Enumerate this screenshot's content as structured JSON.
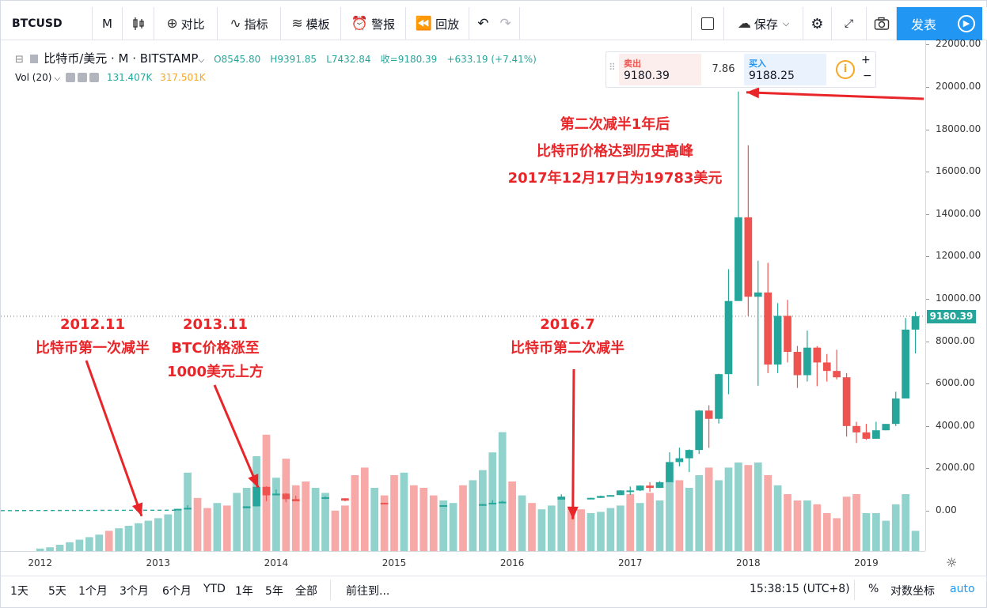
{
  "toolbar": {
    "symbol": "BTCUSD",
    "interval": "M",
    "compare": "对比",
    "indicators": "指标",
    "templates": "模板",
    "alert": "警报",
    "replay": "回放",
    "save": "保存",
    "publish": "发表"
  },
  "legend": {
    "title": "比特币/美元 · M · BITSTAMP",
    "open": "O8545.80",
    "high": "H9391.85",
    "low": "L7432.84",
    "close": "收=9180.39",
    "change": "+633.19 (+7.41%)"
  },
  "volume": {
    "label": "Vol (20)",
    "v1": "131.407K",
    "v2": "317.501K"
  },
  "trade": {
    "sell_label": "卖出",
    "sell_price": "9180.39",
    "spread": "7.86",
    "buy_label": "买入",
    "buy_price": "9188.25"
  },
  "last_price": "9180.39",
  "annotations": {
    "a1_line1": "2012.11",
    "a1_line2": "比特币第一次减半",
    "a2_line1": "2013.11",
    "a2_line2": "BTC价格涨至",
    "a2_line3": "1000美元上方",
    "a3_line1": "2016.7",
    "a3_line2": "比特币第二次减半",
    "a4_line1": "第二次减半1年后",
    "a4_line2": "比特币价格达到历史高峰",
    "a4_line3": "2017年12月17日为19783美元"
  },
  "bottom": {
    "ranges": [
      "1天",
      "5天",
      "1个月",
      "3个月",
      "6个月",
      "YTD",
      "1年",
      "5年",
      "全部"
    ],
    "goto": "前往到...",
    "time": "15:38:15 (UTC+8)",
    "percent": "%",
    "log": "对数坐标",
    "auto": "auto"
  },
  "colors": {
    "up": "#26a69a",
    "down": "#ef5350",
    "annotation": "#e8262a",
    "accent": "#2196f3"
  },
  "chart_data": {
    "type": "candlestick",
    "x_labels": [
      "2012",
      "2013",
      "2014",
      "2015",
      "2016",
      "2017",
      "2018",
      "2019"
    ],
    "y_ticks": [
      "22000.00",
      "20000.00",
      "18000.00",
      "16000.00",
      "14000.00",
      "12000.00",
      "10000.00",
      "8000.00",
      "6000.00",
      "4000.00",
      "2000.00",
      "0.00"
    ],
    "ylim": [
      -1900,
      22200
    ],
    "xlim": [
      "2011-09",
      "2019-07"
    ],
    "candles": [
      {
        "t": "2013-03",
        "o": 34,
        "h": 93,
        "l": 34,
        "c": 93
      },
      {
        "t": "2013-04",
        "o": 93,
        "h": 266,
        "l": 50,
        "c": 139
      },
      {
        "t": "2013-10",
        "o": 124,
        "h": 211,
        "l": 118,
        "c": 211
      },
      {
        "t": "2013-11",
        "o": 211,
        "h": 1163,
        "l": 203,
        "c": 1130
      },
      {
        "t": "2013-12",
        "o": 1130,
        "h": 1160,
        "l": 455,
        "c": 730
      },
      {
        "t": "2014-01",
        "o": 730,
        "h": 1010,
        "l": 730,
        "c": 810
      },
      {
        "t": "2014-02",
        "o": 810,
        "h": 840,
        "l": 410,
        "c": 550
      },
      {
        "t": "2014-03",
        "o": 550,
        "h": 715,
        "l": 450,
        "c": 450
      },
      {
        "t": "2014-06",
        "o": 630,
        "h": 680,
        "l": 550,
        "c": 640
      },
      {
        "t": "2014-08",
        "o": 590,
        "h": 600,
        "l": 450,
        "c": 480
      },
      {
        "t": "2014-12",
        "o": 378,
        "h": 380,
        "l": 300,
        "c": 320
      },
      {
        "t": "2015-06",
        "o": 230,
        "h": 270,
        "l": 220,
        "c": 264
      },
      {
        "t": "2015-10",
        "o": 237,
        "h": 330,
        "l": 237,
        "c": 314
      },
      {
        "t": "2015-11",
        "o": 314,
        "h": 500,
        "l": 310,
        "c": 378
      },
      {
        "t": "2015-12",
        "o": 378,
        "h": 470,
        "l": 350,
        "c": 430
      },
      {
        "t": "2016-06",
        "o": 530,
        "h": 780,
        "l": 530,
        "c": 670
      },
      {
        "t": "2016-09",
        "o": 572,
        "h": 620,
        "l": 560,
        "c": 610
      },
      {
        "t": "2016-10",
        "o": 610,
        "h": 720,
        "l": 600,
        "c": 700
      },
      {
        "t": "2016-11",
        "o": 700,
        "h": 750,
        "l": 680,
        "c": 740
      },
      {
        "t": "2016-12",
        "o": 740,
        "h": 970,
        "l": 740,
        "c": 960
      },
      {
        "t": "2017-01",
        "o": 960,
        "h": 1150,
        "l": 750,
        "c": 960
      },
      {
        "t": "2017-02",
        "o": 960,
        "h": 1200,
        "l": 930,
        "c": 1190
      },
      {
        "t": "2017-03",
        "o": 1190,
        "h": 1350,
        "l": 890,
        "c": 1080
      },
      {
        "t": "2017-04",
        "o": 1080,
        "h": 1400,
        "l": 1080,
        "c": 1350
      },
      {
        "t": "2017-05",
        "o": 1350,
        "h": 2760,
        "l": 1350,
        "c": 2300
      },
      {
        "t": "2017-06",
        "o": 2300,
        "h": 2980,
        "l": 2100,
        "c": 2480
      },
      {
        "t": "2017-07",
        "o": 2480,
        "h": 2900,
        "l": 1830,
        "c": 2870
      },
      {
        "t": "2017-08",
        "o": 2870,
        "h": 4750,
        "l": 2680,
        "c": 4730
      },
      {
        "t": "2017-09",
        "o": 4730,
        "h": 4980,
        "l": 2970,
        "c": 4340
      },
      {
        "t": "2017-10",
        "o": 4340,
        "h": 6470,
        "l": 4120,
        "c": 6450
      },
      {
        "t": "2017-11",
        "o": 6450,
        "h": 11400,
        "l": 5500,
        "c": 9900
      },
      {
        "t": "2017-12",
        "o": 9900,
        "h": 19783,
        "l": 9900,
        "c": 13850
      },
      {
        "t": "2018-01",
        "o": 13850,
        "h": 17250,
        "l": 9200,
        "c": 10100
      },
      {
        "t": "2018-02",
        "o": 10100,
        "h": 11800,
        "l": 5900,
        "c": 10300
      },
      {
        "t": "2018-03",
        "o": 10300,
        "h": 11700,
        "l": 6500,
        "c": 6900
      },
      {
        "t": "2018-04",
        "o": 6900,
        "h": 9800,
        "l": 6500,
        "c": 9200
      },
      {
        "t": "2018-05",
        "o": 9200,
        "h": 9950,
        "l": 7000,
        "c": 7500
      },
      {
        "t": "2018-06",
        "o": 7500,
        "h": 7780,
        "l": 5800,
        "c": 6400
      },
      {
        "t": "2018-07",
        "o": 6400,
        "h": 8500,
        "l": 6100,
        "c": 7700
      },
      {
        "t": "2018-08",
        "o": 7700,
        "h": 7770,
        "l": 5880,
        "c": 7000
      },
      {
        "t": "2018-09",
        "o": 7000,
        "h": 7400,
        "l": 6100,
        "c": 6600
      },
      {
        "t": "2018-10",
        "o": 6600,
        "h": 7600,
        "l": 6200,
        "c": 6300
      },
      {
        "t": "2018-11",
        "o": 6300,
        "h": 6500,
        "l": 3500,
        "c": 4000
      },
      {
        "t": "2018-12",
        "o": 4000,
        "h": 4200,
        "l": 3200,
        "c": 3700
      },
      {
        "t": "2019-01",
        "o": 3700,
        "h": 4100,
        "l": 3350,
        "c": 3400
      },
      {
        "t": "2019-02",
        "o": 3400,
        "h": 4200,
        "l": 3400,
        "c": 3800
      },
      {
        "t": "2019-03",
        "o": 3800,
        "h": 4100,
        "l": 3800,
        "c": 4100
      },
      {
        "t": "2019-04",
        "o": 4100,
        "h": 5620,
        "l": 4000,
        "c": 5300
      },
      {
        "t": "2019-05",
        "o": 5300,
        "h": 9100,
        "l": 5300,
        "c": 8550
      },
      {
        "t": "2019-06",
        "o": 8550,
        "h": 9390,
        "l": 7430,
        "c": 9180
      }
    ],
    "volume_bars": [
      {
        "t": "2012-01",
        "v": 0.02,
        "up": true
      },
      {
        "t": "2012-02",
        "v": 0.03,
        "up": true
      },
      {
        "t": "2012-03",
        "v": 0.05,
        "up": true
      },
      {
        "t": "2012-04",
        "v": 0.07,
        "up": true
      },
      {
        "t": "2012-05",
        "v": 0.09,
        "up": true
      },
      {
        "t": "2012-06",
        "v": 0.11,
        "up": true
      },
      {
        "t": "2012-07",
        "v": 0.13,
        "up": true
      },
      {
        "t": "2012-08",
        "v": 0.16,
        "up": false
      },
      {
        "t": "2012-09",
        "v": 0.18,
        "up": true
      },
      {
        "t": "2012-10",
        "v": 0.2,
        "up": true
      },
      {
        "t": "2012-11",
        "v": 0.22,
        "up": true
      },
      {
        "t": "2012-12",
        "v": 0.24,
        "up": true
      },
      {
        "t": "2013-01",
        "v": 0.26,
        "up": true
      },
      {
        "t": "2013-02",
        "v": 0.29,
        "up": true
      },
      {
        "t": "2013-03",
        "v": 0.33,
        "up": true
      },
      {
        "t": "2013-04",
        "v": 0.62,
        "up": true
      },
      {
        "t": "2013-05",
        "v": 0.42,
        "up": false
      },
      {
        "t": "2013-06",
        "v": 0.34,
        "up": false
      },
      {
        "t": "2013-07",
        "v": 0.38,
        "up": true
      },
      {
        "t": "2013-08",
        "v": 0.36,
        "up": false
      },
      {
        "t": "2013-09",
        "v": 0.46,
        "up": true
      },
      {
        "t": "2013-10",
        "v": 0.5,
        "up": true
      },
      {
        "t": "2013-11",
        "v": 0.75,
        "up": true
      },
      {
        "t": "2013-12",
        "v": 0.92,
        "up": false
      },
      {
        "t": "2014-01",
        "v": 0.58,
        "up": true
      },
      {
        "t": "2014-02",
        "v": 0.73,
        "up": false
      },
      {
        "t": "2014-03",
        "v": 0.52,
        "up": false
      },
      {
        "t": "2014-04",
        "v": 0.55,
        "up": false
      },
      {
        "t": "2014-05",
        "v": 0.5,
        "up": true
      },
      {
        "t": "2014-06",
        "v": 0.46,
        "up": true
      },
      {
        "t": "2014-07",
        "v": 0.32,
        "up": false
      },
      {
        "t": "2014-08",
        "v": 0.36,
        "up": false
      },
      {
        "t": "2014-09",
        "v": 0.6,
        "up": false
      },
      {
        "t": "2014-10",
        "v": 0.66,
        "up": false
      },
      {
        "t": "2014-11",
        "v": 0.5,
        "up": true
      },
      {
        "t": "2014-12",
        "v": 0.44,
        "up": false
      },
      {
        "t": "2015-01",
        "v": 0.6,
        "up": false
      },
      {
        "t": "2015-02",
        "v": 0.62,
        "up": true
      },
      {
        "t": "2015-03",
        "v": 0.52,
        "up": false
      },
      {
        "t": "2015-04",
        "v": 0.5,
        "up": false
      },
      {
        "t": "2015-05",
        "v": 0.44,
        "up": false
      },
      {
        "t": "2015-06",
        "v": 0.4,
        "up": true
      },
      {
        "t": "2015-07",
        "v": 0.38,
        "up": true
      },
      {
        "t": "2015-08",
        "v": 0.52,
        "up": false
      },
      {
        "t": "2015-09",
        "v": 0.56,
        "up": true
      },
      {
        "t": "2015-10",
        "v": 0.64,
        "up": true
      },
      {
        "t": "2015-11",
        "v": 0.78,
        "up": true
      },
      {
        "t": "2015-12",
        "v": 0.94,
        "up": true
      },
      {
        "t": "2016-01",
        "v": 0.55,
        "up": false
      },
      {
        "t": "2016-02",
        "v": 0.44,
        "up": true
      },
      {
        "t": "2016-03",
        "v": 0.38,
        "up": false
      },
      {
        "t": "2016-04",
        "v": 0.33,
        "up": true
      },
      {
        "t": "2016-05",
        "v": 0.36,
        "up": true
      },
      {
        "t": "2016-06",
        "v": 0.42,
        "up": true
      },
      {
        "t": "2016-07",
        "v": 0.35,
        "up": false
      },
      {
        "t": "2016-08",
        "v": 0.33,
        "up": false
      },
      {
        "t": "2016-09",
        "v": 0.3,
        "up": true
      },
      {
        "t": "2016-10",
        "v": 0.31,
        "up": true
      },
      {
        "t": "2016-11",
        "v": 0.34,
        "up": true
      },
      {
        "t": "2016-12",
        "v": 0.36,
        "up": true
      },
      {
        "t": "2017-01",
        "v": 0.45,
        "up": false
      },
      {
        "t": "2017-02",
        "v": 0.38,
        "up": true
      },
      {
        "t": "2017-03",
        "v": 0.46,
        "up": false
      },
      {
        "t": "2017-04",
        "v": 0.4,
        "up": true
      },
      {
        "t": "2017-05",
        "v": 0.56,
        "up": true
      },
      {
        "t": "2017-06",
        "v": 0.56,
        "up": false
      },
      {
        "t": "2017-07",
        "v": 0.5,
        "up": true
      },
      {
        "t": "2017-08",
        "v": 0.6,
        "up": true
      },
      {
        "t": "2017-09",
        "v": 0.66,
        "up": false
      },
      {
        "t": "2017-10",
        "v": 0.56,
        "up": true
      },
      {
        "t": "2017-11",
        "v": 0.66,
        "up": true
      },
      {
        "t": "2017-12",
        "v": 0.7,
        "up": true
      },
      {
        "t": "2018-01",
        "v": 0.68,
        "up": false
      },
      {
        "t": "2018-02",
        "v": 0.7,
        "up": true
      },
      {
        "t": "2018-03",
        "v": 0.6,
        "up": false
      },
      {
        "t": "2018-04",
        "v": 0.52,
        "up": true
      },
      {
        "t": "2018-05",
        "v": 0.45,
        "up": false
      },
      {
        "t": "2018-06",
        "v": 0.4,
        "up": false
      },
      {
        "t": "2018-07",
        "v": 0.4,
        "up": true
      },
      {
        "t": "2018-08",
        "v": 0.37,
        "up": false
      },
      {
        "t": "2018-09",
        "v": 0.3,
        "up": false
      },
      {
        "t": "2018-10",
        "v": 0.26,
        "up": false
      },
      {
        "t": "2018-11",
        "v": 0.43,
        "up": false
      },
      {
        "t": "2018-12",
        "v": 0.45,
        "up": false
      },
      {
        "t": "2019-01",
        "v": 0.3,
        "up": true
      },
      {
        "t": "2019-02",
        "v": 0.3,
        "up": true
      },
      {
        "t": "2019-03",
        "v": 0.24,
        "up": true
      },
      {
        "t": "2019-04",
        "v": 0.37,
        "up": true
      },
      {
        "t": "2019-05",
        "v": 0.45,
        "up": true
      },
      {
        "t": "2019-06",
        "v": 0.16,
        "up": true
      }
    ]
  }
}
